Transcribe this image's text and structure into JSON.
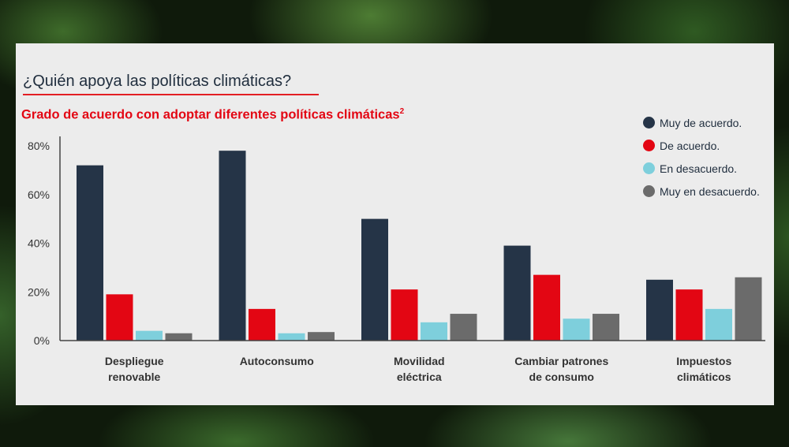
{
  "chart_data": {
    "type": "bar",
    "title": "¿Quién apoya las políticas climáticas?",
    "subtitle": "Grado de acuerdo con adoptar diferentes políticas climáticas",
    "subtitle_superscript": "2",
    "categories": [
      [
        "Despliegue",
        "renovable"
      ],
      [
        "Autoconsumo"
      ],
      [
        "Movilidad",
        "eléctrica"
      ],
      [
        "Cambiar patrones",
        "de consumo"
      ],
      [
        "Impuestos",
        "climáticos"
      ]
    ],
    "series": [
      {
        "name": "Muy de acuerdo.",
        "color": "#253447",
        "values": [
          72,
          78,
          50,
          39,
          25
        ]
      },
      {
        "name": "De acuerdo.",
        "color": "#e30613",
        "values": [
          19,
          13,
          21,
          27,
          21
        ]
      },
      {
        "name": "En desacuerdo.",
        "color": "#7ecfdc",
        "values": [
          4,
          3,
          7.5,
          9,
          13
        ]
      },
      {
        "name": "Muy en desacuerdo.",
        "color": "#6b6b6b",
        "values": [
          3,
          3.5,
          11,
          11,
          26
        ]
      }
    ],
    "yticks": [
      {
        "value": 0,
        "label": "0%"
      },
      {
        "value": 20,
        "label": "20%"
      },
      {
        "value": 40,
        "label": "40%"
      },
      {
        "value": 60,
        "label": "60%"
      },
      {
        "value": 80,
        "label": "80%"
      }
    ],
    "ylim": [
      0,
      80
    ],
    "grid": false,
    "legend_position": "top-right"
  }
}
